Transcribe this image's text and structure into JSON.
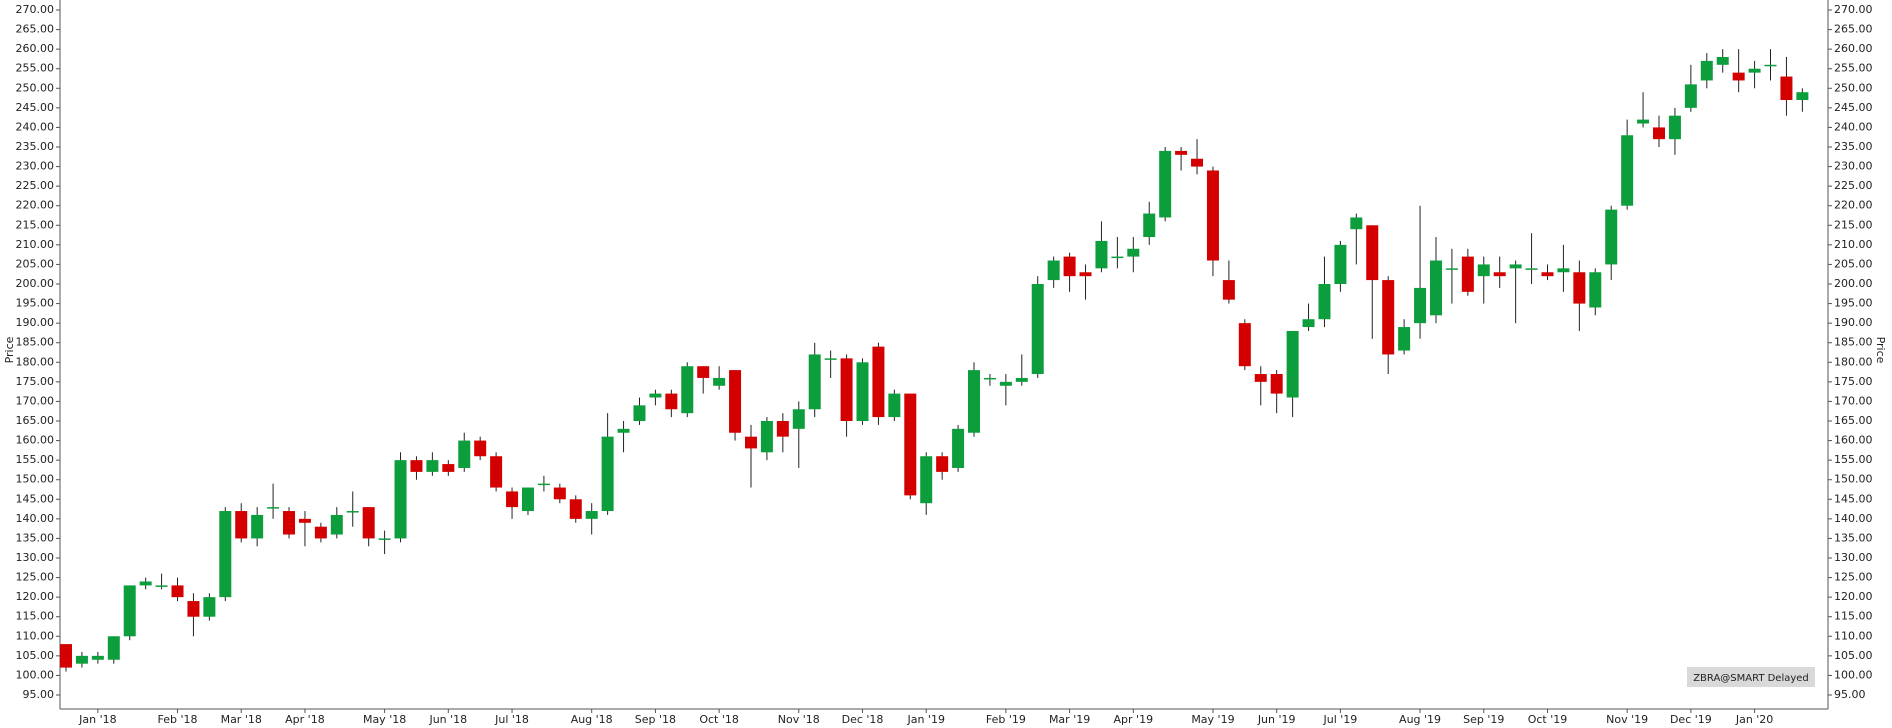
{
  "chart_data": {
    "type": "candlestick",
    "ylabel": "Price",
    "watermark": "ZBRA@SMART Delayed",
    "up_color": "#0c9e3c",
    "down_color": "#d40000",
    "open": [
      108,
      103,
      104,
      104,
      110,
      123,
      123,
      123,
      119,
      115,
      120,
      142,
      135,
      143,
      142,
      140,
      138,
      136,
      142,
      143,
      135,
      135,
      155,
      152,
      154,
      153,
      160,
      156,
      147,
      142,
      149,
      148,
      145,
      140,
      142,
      162,
      165,
      171,
      172,
      167,
      179,
      174,
      178,
      161,
      157,
      165,
      163,
      168,
      181,
      181,
      165,
      184,
      166,
      172,
      144,
      156,
      153,
      162,
      176,
      174,
      175,
      177,
      201,
      207,
      203,
      204,
      207,
      207,
      212,
      217,
      234,
      232,
      229,
      201,
      190,
      177,
      177,
      171,
      189,
      191,
      200,
      214,
      215,
      201,
      183,
      190,
      192,
      204,
      207,
      202,
      203,
      204,
      204,
      203,
      203,
      203,
      194,
      205,
      220,
      241,
      240,
      237,
      245,
      252,
      256,
      254,
      254,
      256,
      253,
      247
    ],
    "high": [
      108,
      106,
      106,
      110,
      123,
      125,
      126,
      125,
      121,
      121,
      143,
      144,
      143,
      149,
      143,
      142,
      139,
      143,
      147,
      143,
      137,
      157,
      156,
      157,
      155,
      162,
      161,
      157,
      148,
      148,
      151,
      149,
      146,
      144,
      167,
      165,
      171,
      173,
      173,
      180,
      179,
      179,
      178,
      164,
      166,
      167,
      170,
      185,
      183,
      182,
      181,
      185,
      173,
      172,
      157,
      157,
      164,
      180,
      177,
      177,
      182,
      202,
      207,
      208,
      205,
      216,
      212,
      212,
      221,
      235,
      235,
      237,
      230,
      206,
      191,
      179,
      178,
      188,
      195,
      207,
      211,
      218,
      215,
      202,
      191,
      220,
      212,
      209,
      209,
      207,
      207,
      206,
      213,
      205,
      210,
      206,
      204,
      220,
      242,
      249,
      243,
      245,
      256,
      259,
      260,
      260,
      257,
      260,
      258,
      250
    ],
    "low": [
      101,
      102,
      103,
      103,
      109,
      122,
      122,
      119,
      110,
      114,
      119,
      134,
      133,
      140,
      135,
      133,
      134,
      135,
      138,
      133,
      131,
      134,
      150,
      151,
      151,
      152,
      155,
      147,
      140,
      141,
      147,
      144,
      139,
      136,
      141,
      157,
      164,
      169,
      166,
      166,
      172,
      173,
      160,
      148,
      155,
      157,
      153,
      166,
      176,
      161,
      164,
      164,
      165,
      145,
      141,
      150,
      152,
      161,
      174,
      169,
      174,
      176,
      199,
      198,
      196,
      203,
      204,
      203,
      210,
      216,
      229,
      228,
      202,
      195,
      178,
      169,
      167,
      166,
      188,
      189,
      198,
      205,
      186,
      177,
      182,
      186,
      190,
      195,
      197,
      195,
      199,
      190,
      200,
      201,
      198,
      188,
      192,
      201,
      219,
      240,
      235,
      233,
      244,
      250,
      254,
      249,
      250,
      252,
      243,
      244
    ],
    "close": [
      102,
      105,
      105,
      110,
      123,
      124,
      123,
      120,
      115,
      120,
      142,
      135,
      141,
      143,
      136,
      139,
      135,
      141,
      142,
      135,
      135,
      155,
      152,
      155,
      152,
      160,
      156,
      148,
      143,
      148,
      149,
      145,
      140,
      142,
      161,
      163,
      169,
      172,
      168,
      179,
      176,
      176,
      162,
      158,
      165,
      161,
      168,
      182,
      181,
      165,
      180,
      166,
      172,
      146,
      156,
      152,
      163,
      178,
      176,
      175,
      176,
      200,
      206,
      202,
      202,
      211,
      207,
      209,
      218,
      234,
      233,
      230,
      206,
      196,
      179,
      175,
      172,
      188,
      191,
      200,
      210,
      217,
      201,
      182,
      189,
      199,
      206,
      204,
      198,
      205,
      202,
      205,
      204,
      202,
      204,
      195,
      203,
      219,
      238,
      242,
      237,
      243,
      251,
      257,
      258,
      252,
      255,
      256,
      247,
      249
    ],
    "xticks": [
      {
        "value": 2,
        "label": "Jan '18"
      },
      {
        "value": 7,
        "label": "Feb '18"
      },
      {
        "value": 11,
        "label": "Mar '18"
      },
      {
        "value": 15,
        "label": "Apr '18"
      },
      {
        "value": 20,
        "label": "May '18"
      },
      {
        "value": 24,
        "label": "Jun '18"
      },
      {
        "value": 28,
        "label": "Jul '18"
      },
      {
        "value": 33,
        "label": "Aug '18"
      },
      {
        "value": 37,
        "label": "Sep '18"
      },
      {
        "value": 41,
        "label": "Oct '18"
      },
      {
        "value": 46,
        "label": "Nov '18"
      },
      {
        "value": 50,
        "label": "Dec '18"
      },
      {
        "value": 54,
        "label": "Jan '19"
      },
      {
        "value": 59,
        "label": "Feb '19"
      },
      {
        "value": 63,
        "label": "Mar '19"
      },
      {
        "value": 67,
        "label": "Apr '19"
      },
      {
        "value": 72,
        "label": "May '19"
      },
      {
        "value": 76,
        "label": "Jun '19"
      },
      {
        "value": 80,
        "label": "Jul '19"
      },
      {
        "value": 85,
        "label": "Aug '19"
      },
      {
        "value": 89,
        "label": "Sep '19"
      },
      {
        "value": 93,
        "label": "Oct '19"
      },
      {
        "value": 98,
        "label": "Nov '19"
      },
      {
        "value": 102,
        "label": "Dec '19"
      },
      {
        "value": 106,
        "label": "Jan '20"
      }
    ],
    "ylim": [
      95,
      270
    ],
    "yticks": [
      {
        "value": 95,
        "label": "95.00"
      },
      {
        "value": 100,
        "label": "100.00"
      },
      {
        "value": 105,
        "label": "105.00"
      },
      {
        "value": 110,
        "label": "110.00"
      },
      {
        "value": 115,
        "label": "115.00"
      },
      {
        "value": 120,
        "label": "120.00"
      },
      {
        "value": 125,
        "label": "125.00"
      },
      {
        "value": 130,
        "label": "130.00"
      },
      {
        "value": 135,
        "label": "135.00"
      },
      {
        "value": 140,
        "label": "140.00"
      },
      {
        "value": 145,
        "label": "145.00"
      },
      {
        "value": 150,
        "label": "150.00"
      },
      {
        "value": 155,
        "label": "155.00"
      },
      {
        "value": 160,
        "label": "160.00"
      },
      {
        "value": 165,
        "label": "165.00"
      },
      {
        "value": 170,
        "label": "170.00"
      },
      {
        "value": 175,
        "label": "175.00"
      },
      {
        "value": 180,
        "label": "180.00"
      },
      {
        "value": 185,
        "label": "185.00"
      },
      {
        "value": 190,
        "label": "190.00"
      },
      {
        "value": 195,
        "label": "195.00"
      },
      {
        "value": 200,
        "label": "200.00"
      },
      {
        "value": 205,
        "label": "205.00"
      },
      {
        "value": 210,
        "label": "210.00"
      },
      {
        "value": 215,
        "label": "215.00"
      },
      {
        "value": 220,
        "label": "220.00"
      },
      {
        "value": 225,
        "label": "225.00"
      },
      {
        "value": 230,
        "label": "230.00"
      },
      {
        "value": 235,
        "label": "235.00"
      },
      {
        "value": 240,
        "label": "240.00"
      },
      {
        "value": 245,
        "label": "245.00"
      },
      {
        "value": 250,
        "label": "250.00"
      },
      {
        "value": 255,
        "label": "255.00"
      },
      {
        "value": 260,
        "label": "260.00"
      },
      {
        "value": 265,
        "label": "265.00"
      },
      {
        "value": 270,
        "label": "270.00"
      }
    ]
  }
}
